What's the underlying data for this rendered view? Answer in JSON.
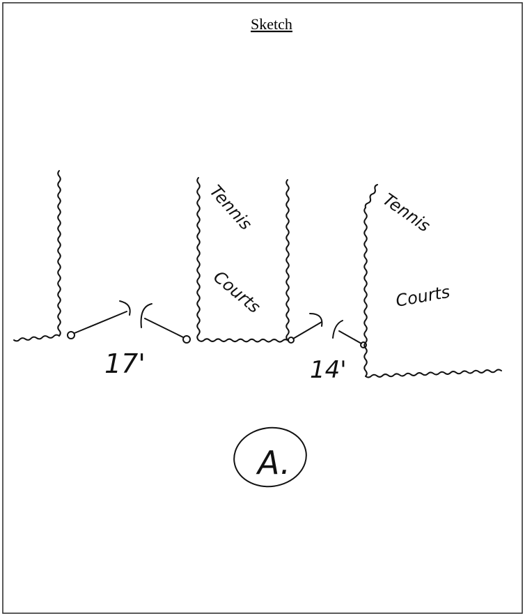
{
  "header": {
    "title": "Sketch"
  },
  "sketch": {
    "courts": [
      {
        "line1": "Tennis",
        "line2": "Courts"
      },
      {
        "line1": "Tennis",
        "line2": "Courts"
      }
    ],
    "dimensions": [
      "17'",
      "14'"
    ],
    "marker": "A."
  }
}
